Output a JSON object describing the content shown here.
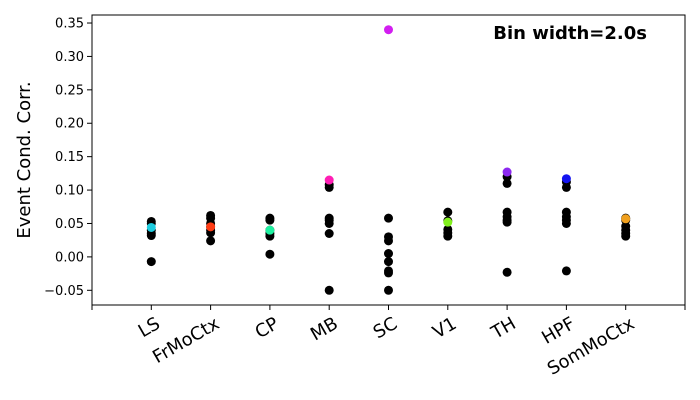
{
  "chart_data": {
    "type": "scatter",
    "title": "",
    "annotation": "Bin width=2.0s",
    "xlabel": "",
    "ylabel": "Event Cond. Corr.",
    "ylim": [
      -0.072,
      0.362
    ],
    "yticks": [
      -0.05,
      0.0,
      0.05,
      0.1,
      0.15,
      0.2,
      0.25,
      0.3,
      0.35
    ],
    "ytick_labels": [
      "−0.05",
      "0.00",
      "0.05",
      "0.10",
      "0.15",
      "0.20",
      "0.25",
      "0.30",
      "0.35"
    ],
    "categories": [
      "LS",
      "FrMoCtx",
      "CP",
      "MB",
      "SC",
      "V1",
      "TH",
      "HPF",
      "SomMoCtx"
    ],
    "grid": false,
    "series": [
      {
        "values": [
          [
            0.053,
            0.05,
            0.04,
            0.035,
            0.032,
            -0.007
          ],
          [
            0.062,
            0.058,
            0.05,
            0.045,
            0.04,
            0.036,
            0.024
          ],
          [
            0.058,
            0.055,
            0.04,
            0.035,
            0.031,
            0.004
          ],
          [
            0.108,
            0.104,
            0.058,
            0.055,
            0.05,
            0.035,
            -0.05
          ],
          [
            0.058,
            0.03,
            0.024,
            0.005,
            -0.007,
            -0.021,
            -0.024,
            -0.05
          ],
          [
            0.067,
            0.054,
            0.041,
            0.036,
            0.031
          ],
          [
            0.12,
            0.11,
            0.067,
            0.06,
            0.055,
            0.052,
            -0.023
          ],
          [
            0.112,
            0.104,
            0.067,
            0.06,
            0.055,
            0.05,
            -0.021
          ],
          [
            0.058,
            0.055,
            0.046,
            0.04,
            0.035,
            0.031
          ]
        ],
        "color": "#000000"
      }
    ],
    "highlights": [
      {
        "category": "LS",
        "value": 0.044,
        "color": "#1ecde0"
      },
      {
        "category": "FrMoCtx",
        "value": 0.045,
        "color": "#ff3c14"
      },
      {
        "category": "CP",
        "value": 0.04,
        "color": "#1ef0a0"
      },
      {
        "category": "MB",
        "value": 0.115,
        "color": "#ff1eb4"
      },
      {
        "category": "SC",
        "value": 0.34,
        "color": "#d21ef0"
      },
      {
        "category": "V1",
        "value": 0.052,
        "color": "#82f01e"
      },
      {
        "category": "TH",
        "value": 0.127,
        "color": "#8c28f0"
      },
      {
        "category": "HPF",
        "value": 0.117,
        "color": "#1414f0"
      },
      {
        "category": "SomMoCtx",
        "value": 0.057,
        "color": "#f0a01e"
      }
    ]
  }
}
